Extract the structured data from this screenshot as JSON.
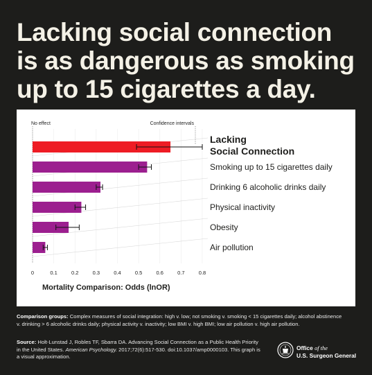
{
  "headline": {
    "lines": [
      "Lacking social connection",
      "is as dangerous as smoking",
      "up to 15 cigarettes a day."
    ]
  },
  "chart_data": {
    "type": "bar",
    "orientation": "horizontal",
    "categories": [
      "Lacking Social Connection",
      "Smoking up to 15 cigarettes daily",
      "Drinking 6 alcoholic drinks daily",
      "Physical inactivity",
      "Obesity",
      "Air pollution"
    ],
    "category_lines": [
      [
        "Lacking",
        "Social Connection"
      ],
      [
        "Smoking up to 15 cigarettes daily"
      ],
      [
        "Drinking 6 alcoholic drinks daily"
      ],
      [
        "Physical inactivity"
      ],
      [
        "Obesity"
      ],
      [
        "Air pollution"
      ]
    ],
    "values": [
      0.65,
      0.54,
      0.32,
      0.23,
      0.17,
      0.06
    ],
    "ci_low": [
      0.49,
      0.5,
      0.3,
      0.2,
      0.11,
      0.05
    ],
    "ci_high": [
      0.8,
      0.56,
      0.33,
      0.25,
      0.22,
      0.07
    ],
    "colors": [
      "#ee1c24",
      "#9c1f8f",
      "#9c1f8f",
      "#9c1f8f",
      "#9c1f8f",
      "#9c1f8f"
    ],
    "xlabel": "Mortality Comparison: Odds (lnOR)",
    "xlim": [
      0,
      0.8
    ],
    "xticks": [
      "0",
      "0.1",
      "0.2",
      "0.3",
      "0.4",
      "0.5",
      "0.6",
      "0.7",
      "0.8"
    ],
    "annotations": {
      "no_effect": "No effect",
      "confidence_intervals": "Confidence intervals"
    },
    "grid": true,
    "legend": "none"
  },
  "footer": {
    "groups_label": "Comparison groups:",
    "groups_text": " Complex measures of social integration: high v. low; not smoking v. smoking < 15 cigarettes daily; alcohol abstinence v. drinking > 6 alcoholic drinks daily; physical activity v. inactivity; low BMI v. high BMI; low air pollution v. high air pollution.",
    "source_label": "Source:",
    "source_text_1": " Holt-Lunstad J, Robles TF, Sbarra DA. Advancing Social Connection as a Public Health Priority in the United States. ",
    "source_journal": "American Psychology.",
    "source_text_2": " 2017;72(6):517-530. doi:10.1037/amp0000103. This graph is a visual approximation."
  },
  "logo": {
    "office": "Office",
    "of_the": "of the",
    "name": "U.S. Surgeon General"
  }
}
